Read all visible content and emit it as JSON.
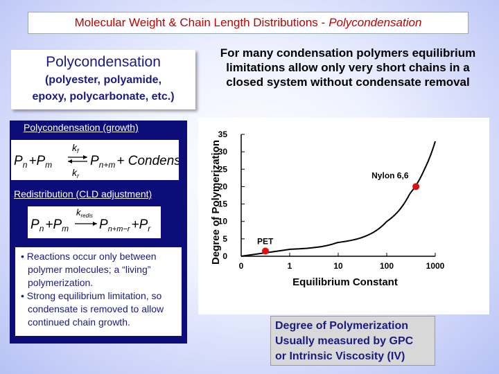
{
  "slide": {
    "title": "Molecular Weight & Chain Length Distributions -",
    "title_italic": "Polycondensation",
    "poly_heading": "Polycondensation",
    "poly_sub1": "(polyester, polyamide,",
    "poly_sub2": "epoxy, polycarbonate, etc.)",
    "right_text": "For many condensation polymers equilibrium limitations allow only very short chains in a closed system without condensate removal",
    "growth_label": "Polycondensation (growth)",
    "redis_label": "Redistribution (CLD adjustment)",
    "bullet1": "• Reactions occur only between polymer molecules; a “living” polymerization.",
    "bullet2": "• Strong equilibrium limitation, so condensate is removed to allow continued chain growth.",
    "dp_line1": "Degree of Polymerization",
    "dp_line2": "Usually measured by GPC",
    "dp_line3": "or Intrinsic Viscosity (IV)"
  },
  "equations": {
    "growth": {
      "lhs": "P",
      "lhs_sub": "n",
      "plus": "+",
      "p2": "P",
      "p2_sub": "m",
      "k_top": "k",
      "k_top_sub": "f",
      "k_bot": "k",
      "k_bot_sub": "r",
      "rhs": "P",
      "rhs_sub": "n+m",
      "rhs_tail": "+ Condensate"
    },
    "redis": {
      "lhs": "P",
      "lhs_sub": "n",
      "plus": "+",
      "p2": "P",
      "p2_sub": "m",
      "k_top": "k",
      "k_top_sub": "redis",
      "rhs": "P",
      "rhs_sub": "n+m−r",
      "rhs_plus": "+",
      "rhs2": "P",
      "rhs2_sub": "r"
    }
  },
  "chart_data": {
    "type": "line",
    "xlabel": "Equilibrium  Constant",
    "ylabel": "Degree  of  Polymerization",
    "x_tick_labels": [
      "0",
      "1",
      "10",
      "100",
      "1000"
    ],
    "y_tick_labels": [
      "0",
      "5",
      "10",
      "15",
      "20",
      "25",
      "30",
      "35"
    ],
    "ylim": [
      0,
      35
    ],
    "series": [
      {
        "x": [
          0,
          1,
          10,
          100,
          300,
          600,
          1000
        ],
        "y": [
          0,
          2,
          4,
          10,
          18,
          25,
          33
        ]
      }
    ],
    "points": [
      {
        "label": "PET",
        "x": 0.5,
        "y": 1.5,
        "color": "#dd1111"
      },
      {
        "label": "Nylon  6,6",
        "x": 400,
        "y": 20,
        "color": "#dd1111"
      }
    ],
    "grid": false
  }
}
